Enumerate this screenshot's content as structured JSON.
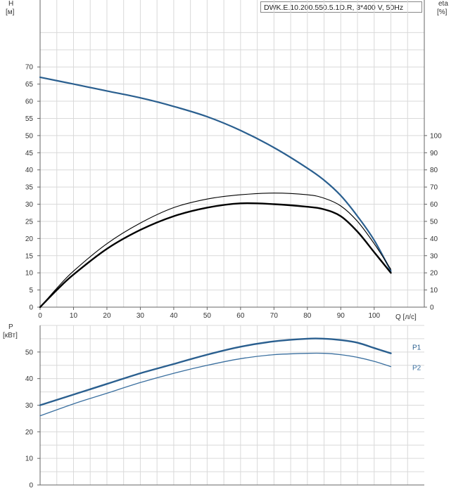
{
  "header": {
    "model_label": "DWK.E.10.200.550.5.1D.R, 3*400 V, 50Hz"
  },
  "chart_data": [
    {
      "type": "line",
      "name": "performance",
      "xlabel": "Q [л/с]",
      "ylabel_left": {
        "name": "H",
        "unit": "[м]"
      },
      "ylabel_right": {
        "name": "eta",
        "unit": "[%]"
      },
      "x_ticks": [
        0,
        10,
        20,
        30,
        40,
        50,
        60,
        70,
        80,
        90,
        100
      ],
      "x_lim": [
        0,
        115
      ],
      "y_left_ticks": [
        0,
        5,
        10,
        15,
        20,
        25,
        30,
        35,
        40,
        45,
        50,
        55,
        60,
        65,
        70
      ],
      "y_left_lim": [
        0,
        85
      ],
      "y_right_ticks": [
        0,
        10,
        20,
        30,
        40,
        50,
        60,
        70,
        80,
        90,
        100
      ],
      "y_right_lim": [
        0,
        170
      ],
      "grid": true,
      "colors": {
        "head": "#2a5f8f",
        "efficiency": "#000000"
      },
      "series": [
        {
          "key": "head",
          "axis": "left",
          "x": [
            0,
            10,
            20,
            30,
            40,
            50,
            60,
            70,
            80,
            85,
            90,
            95,
            100,
            105
          ],
          "y": [
            67,
            65,
            63,
            61,
            58.5,
            55.5,
            51.5,
            46.5,
            40.5,
            37,
            32.5,
            26.5,
            19.5,
            10.5
          ]
        },
        {
          "key": "eta1",
          "axis": "right",
          "x": [
            0,
            5,
            10,
            20,
            30,
            40,
            50,
            60,
            70,
            80,
            85,
            90,
            95,
            100,
            105
          ],
          "y": [
            0,
            10,
            19,
            34,
            45,
            53,
            58,
            60.5,
            60,
            58.5,
            57,
            53,
            44,
            32,
            20
          ]
        },
        {
          "key": "eta2",
          "axis": "right",
          "x": [
            0,
            5,
            10,
            20,
            30,
            40,
            50,
            60,
            70,
            80,
            85,
            90,
            95,
            100,
            105
          ],
          "y": [
            0,
            11,
            21,
            37,
            49,
            58,
            63,
            65.5,
            66.5,
            65.5,
            63.5,
            59,
            50,
            37,
            22
          ]
        }
      ]
    },
    {
      "type": "line",
      "name": "power",
      "ylabel": {
        "name": "P",
        "unit": "[кВт]"
      },
      "x_lim": [
        0,
        115
      ],
      "y_ticks": [
        0,
        10,
        20,
        30,
        40,
        50
      ],
      "y_lim": [
        0,
        60
      ],
      "grid": true,
      "series": [
        {
          "name": "P1",
          "color": "#2a5f8f",
          "x": [
            0,
            10,
            20,
            30,
            40,
            50,
            60,
            70,
            80,
            85,
            90,
            95,
            100,
            105
          ],
          "y": [
            30,
            34,
            38,
            42,
            45.5,
            49,
            52,
            54,
            55,
            55,
            54.5,
            53.5,
            51.5,
            49.5
          ]
        },
        {
          "name": "P2",
          "color": "#3a6f9f",
          "x": [
            0,
            10,
            20,
            30,
            40,
            50,
            60,
            70,
            80,
            85,
            90,
            95,
            100,
            105
          ],
          "y": [
            26,
            30.5,
            34.5,
            38.5,
            42,
            45,
            47.5,
            49,
            49.5,
            49.5,
            49,
            48,
            46.5,
            44.5
          ]
        }
      ]
    }
  ]
}
